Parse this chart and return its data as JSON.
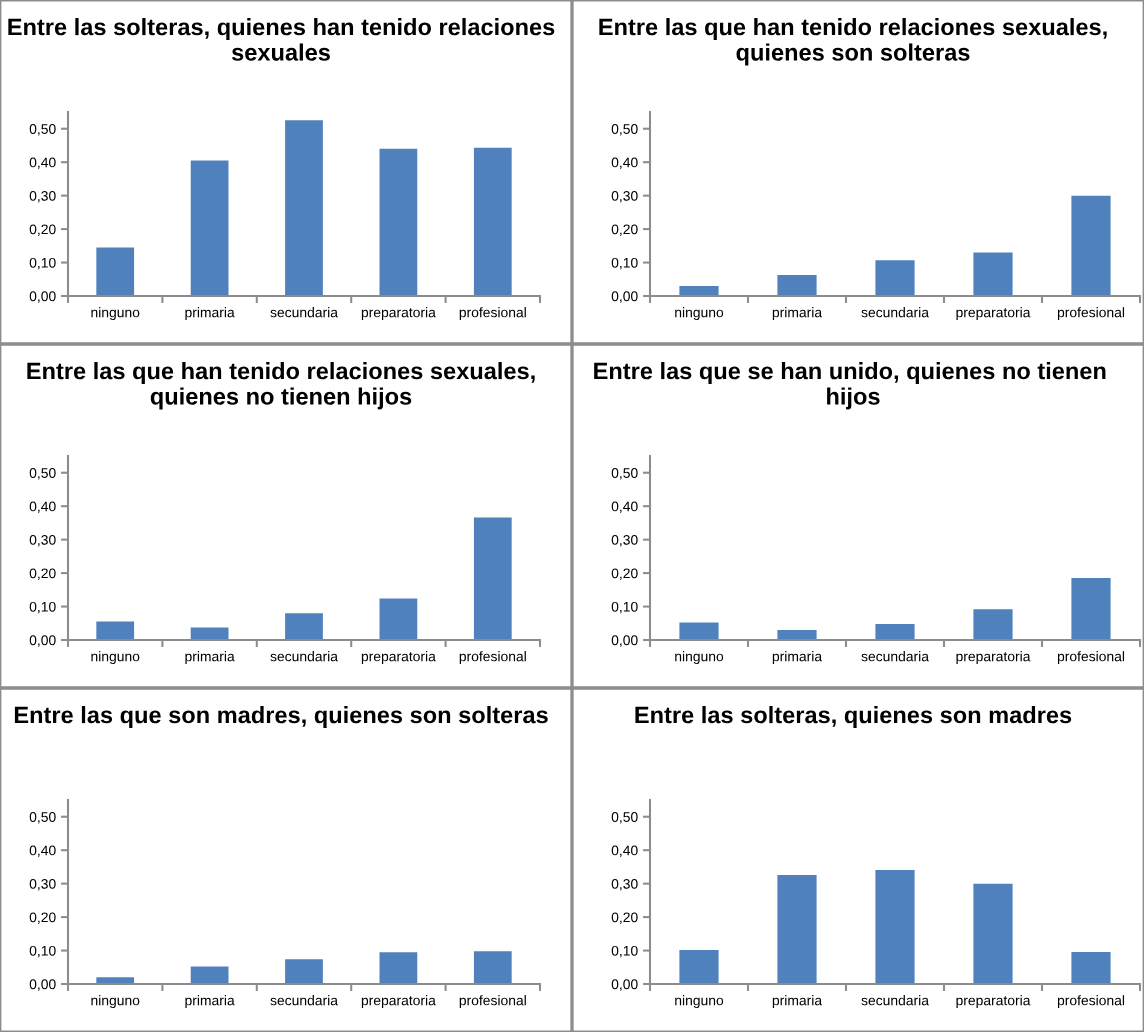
{
  "chart_data": [
    {
      "type": "bar",
      "title": "Entre las solteras, quienes han tenido relaciones sexuales",
      "categories": [
        "ninguno",
        "primaria",
        "secundaria",
        "preparatoria",
        "profesional"
      ],
      "values": [
        0.145,
        0.405,
        0.525,
        0.44,
        0.443
      ],
      "color": "#4f81bd",
      "ylim": [
        0,
        0.55
      ],
      "yticks": [
        {
          "value": 0,
          "label": "0,00"
        },
        {
          "value": 0.1,
          "label": "0,10"
        },
        {
          "value": 0.2,
          "label": "0,20"
        },
        {
          "value": 0.3,
          "label": "0,30"
        },
        {
          "value": 0.4,
          "label": "0,40"
        },
        {
          "value": 0.5,
          "label": "0,50"
        }
      ],
      "grid": false,
      "legend": false
    },
    {
      "type": "bar",
      "title": "Entre las que han tenido relaciones sexuales, quienes son solteras",
      "categories": [
        "ninguno",
        "primaria",
        "secundaria",
        "preparatoria",
        "profesional"
      ],
      "values": [
        0.03,
        0.063,
        0.107,
        0.13,
        0.3
      ],
      "color": "#4f81bd",
      "ylim": [
        0,
        0.55
      ],
      "yticks": [
        {
          "value": 0,
          "label": "0,00"
        },
        {
          "value": 0.1,
          "label": "0,10"
        },
        {
          "value": 0.2,
          "label": "0,20"
        },
        {
          "value": 0.3,
          "label": "0,30"
        },
        {
          "value": 0.4,
          "label": "0,40"
        },
        {
          "value": 0.5,
          "label": "0,50"
        }
      ],
      "grid": false,
      "legend": false
    },
    {
      "type": "bar",
      "title": "Entre las que han tenido relaciones sexuales, quienes no tienen hijos",
      "categories": [
        "ninguno",
        "primaria",
        "secundaria",
        "preparatoria",
        "profesional"
      ],
      "values": [
        0.055,
        0.037,
        0.08,
        0.124,
        0.366
      ],
      "color": "#4f81bd",
      "ylim": [
        0,
        0.55
      ],
      "yticks": [
        {
          "value": 0,
          "label": "0,00"
        },
        {
          "value": 0.1,
          "label": "0,10"
        },
        {
          "value": 0.2,
          "label": "0,20"
        },
        {
          "value": 0.3,
          "label": "0,30"
        },
        {
          "value": 0.4,
          "label": "0,40"
        },
        {
          "value": 0.5,
          "label": "0,50"
        }
      ],
      "grid": false,
      "legend": false
    },
    {
      "type": "bar",
      "title": "Entre las que se han unido, quienes no tienen  hijos",
      "categories": [
        "ninguno",
        "primaria",
        "secundaria",
        "preparatoria",
        "profesional"
      ],
      "values": [
        0.052,
        0.03,
        0.048,
        0.092,
        0.185
      ],
      "color": "#4f81bd",
      "ylim": [
        0,
        0.55
      ],
      "yticks": [
        {
          "value": 0,
          "label": "0,00"
        },
        {
          "value": 0.1,
          "label": "0,10"
        },
        {
          "value": 0.2,
          "label": "0,20"
        },
        {
          "value": 0.3,
          "label": "0,30"
        },
        {
          "value": 0.4,
          "label": "0,40"
        },
        {
          "value": 0.5,
          "label": "0,50"
        }
      ],
      "grid": false,
      "legend": false
    },
    {
      "type": "bar",
      "title": "Entre las que son madres, quienes son solteras",
      "categories": [
        "ninguno",
        "primaria",
        "secundaria",
        "preparatoria",
        "profesional"
      ],
      "values": [
        0.02,
        0.052,
        0.074,
        0.095,
        0.098
      ],
      "color": "#4f81bd",
      "ylim": [
        0,
        0.55
      ],
      "yticks": [
        {
          "value": 0,
          "label": "0,00"
        },
        {
          "value": 0.1,
          "label": "0,10"
        },
        {
          "value": 0.2,
          "label": "0,20"
        },
        {
          "value": 0.3,
          "label": "0,30"
        },
        {
          "value": 0.4,
          "label": "0,40"
        },
        {
          "value": 0.5,
          "label": "0,50"
        }
      ],
      "grid": false,
      "legend": false
    },
    {
      "type": "bar",
      "title": "Entre las solteras, quienes son madres",
      "categories": [
        "ninguno",
        "primaria",
        "secundaria",
        "preparatoria",
        "profesional"
      ],
      "values": [
        0.102,
        0.326,
        0.341,
        0.3,
        0.096
      ],
      "color": "#4f81bd",
      "ylim": [
        0,
        0.55
      ],
      "yticks": [
        {
          "value": 0,
          "label": "0,00"
        },
        {
          "value": 0.1,
          "label": "0,10"
        },
        {
          "value": 0.2,
          "label": "0,20"
        },
        {
          "value": 0.3,
          "label": "0,30"
        },
        {
          "value": 0.4,
          "label": "0,40"
        },
        {
          "value": 0.5,
          "label": "0,50"
        }
      ],
      "grid": false,
      "legend": false
    }
  ]
}
